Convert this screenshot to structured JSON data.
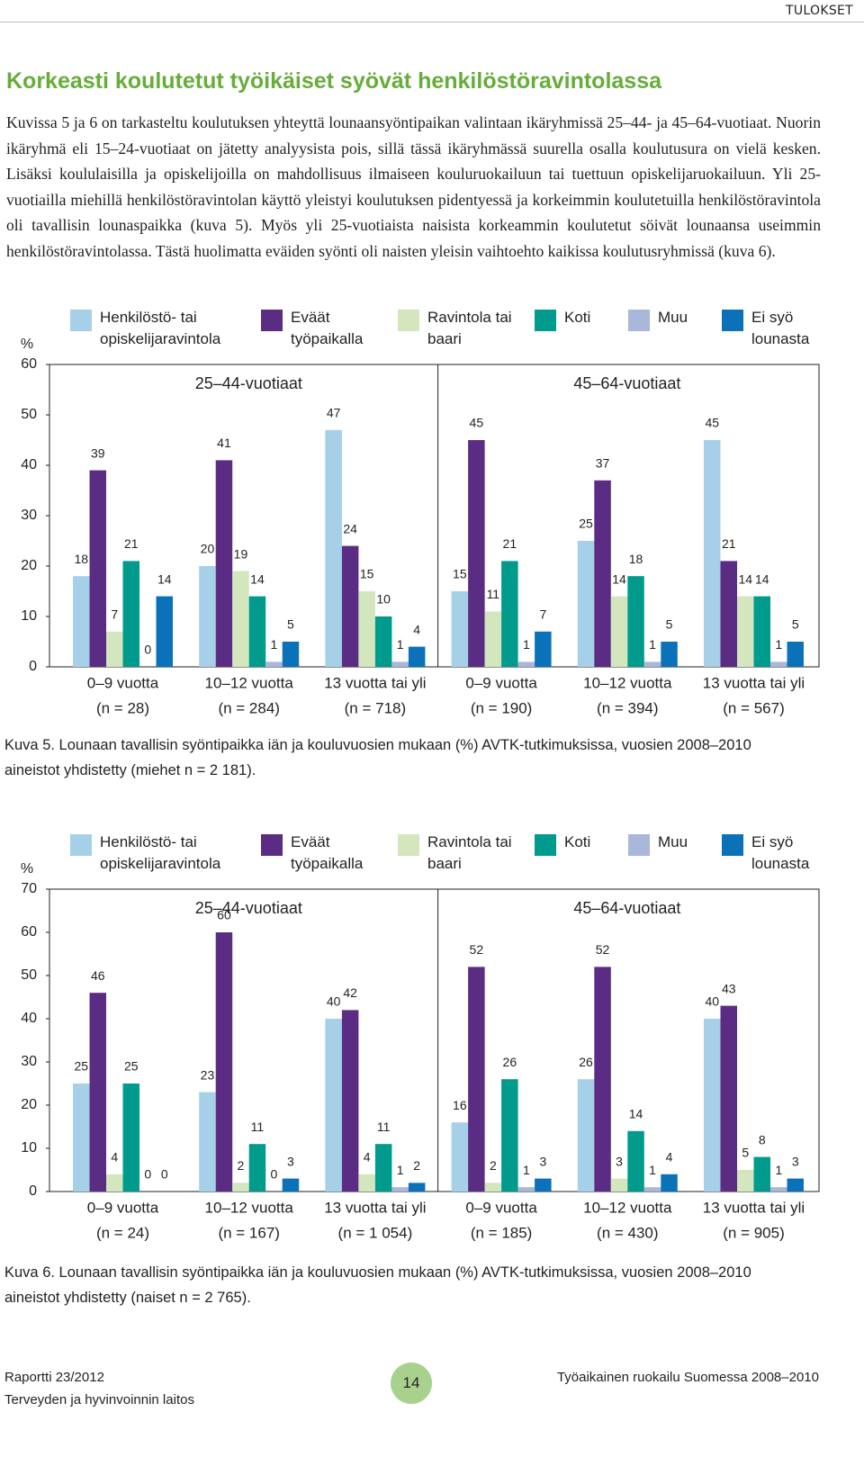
{
  "section": "TULOKSET",
  "heading": "Korkeasti koulutetut työikäiset syövät henkilöstöravintolassa",
  "paragraph": "Kuvissa 5 ja 6 on tarkasteltu koulutuksen yhteyttä lounaansyöntipaikan valintaan ikäryhmissä 25–44- ja 45–64-vuotiaat. Nuorin ikäryhmä eli 15–24-vuotiaat on jätetty analyysista pois, sillä tässä ikäryhmässä suurella osalla koulutusura on vielä kesken. Lisäksi koululaisilla ja opiskelijoilla on mahdollisuus ilmaiseen kouluruokailuun tai tuettuun opiskelijaruokailuun. Yli 25-vuotiailla miehillä henkilöstöravintolan käyttö yleistyi koulutuksen pidentyessä ja korkeimmin koulutetuilla henkilöstöravintola oli tavallisin lounaspaikka (kuva 5). Myös yli 25-vuotiaista naisista korkeammin koulutetut söivät lounaansa useimmin henkilöstöravintolassa. Tästä huolimatta eväiden syönti oli naisten yleisin vaihtoehto kaikissa koulutusryhmissä (kuva 6).",
  "chart_data": [
    {
      "type": "bar",
      "ylabel": "%",
      "ylim": [
        0,
        60
      ],
      "yticks": [
        0,
        10,
        20,
        30,
        40,
        50,
        60
      ],
      "groups": [
        "25–44-vuotiaat",
        "45–64-vuotiaat"
      ],
      "categories": [
        "0–9 vuotta",
        "10–12 vuotta",
        "13 vuotta tai yli",
        "0–9 vuotta",
        "10–12 vuotta",
        "13 vuotta tai yli"
      ],
      "category_notes": [
        "(n = 28)",
        "(n = 284)",
        "(n = 718)",
        "(n = 190)",
        "(n = 394)",
        "(n = 567)"
      ],
      "series": [
        {
          "name": "Henkilöstö- tai opiskelijaravintola",
          "color": "#a6cfe8",
          "values": [
            18,
            20,
            47,
            15,
            25,
            45
          ]
        },
        {
          "name": "Eväät työpaikalla",
          "color": "#5b2c83",
          "values": [
            39,
            41,
            24,
            45,
            37,
            21
          ]
        },
        {
          "name": "Ravintola tai baari",
          "color": "#d3e6bd",
          "values": [
            7,
            19,
            15,
            11,
            14,
            14
          ]
        },
        {
          "name": "Koti",
          "color": "#009b8d",
          "values": [
            21,
            14,
            10,
            21,
            18,
            14
          ]
        },
        {
          "name": "Muu",
          "color": "#a9b7da",
          "values": [
            0,
            1,
            1,
            1,
            1,
            1
          ]
        },
        {
          "name": "Ei syö lounasta",
          "color": "#0b72b9",
          "values": [
            14,
            5,
            4,
            7,
            5,
            5
          ]
        }
      ],
      "caption": "Kuva 5.  Lounaan tavallisin syöntipaikka iän ja kouluvuosien mukaan (%) AVTK-tutkimuksissa, vuosien 2008–2010 aineistot yhdistetty (miehet n = 2 181)."
    },
    {
      "type": "bar",
      "ylabel": "%",
      "ylim": [
        0,
        70
      ],
      "yticks": [
        0,
        10,
        20,
        30,
        40,
        50,
        60,
        70
      ],
      "groups": [
        "25–44-vuotiaat",
        "45–64-vuotiaat"
      ],
      "categories": [
        "0–9 vuotta",
        "10–12 vuotta",
        "13 vuotta tai yli",
        "0–9 vuotta",
        "10–12 vuotta",
        "13 vuotta tai yli"
      ],
      "category_notes": [
        "(n = 24)",
        "(n = 167)",
        "(n = 1 054)",
        "(n = 185)",
        "(n = 430)",
        "(n = 905)"
      ],
      "series": [
        {
          "name": "Henkilöstö- tai opiskelijaravintola",
          "color": "#a6cfe8",
          "values": [
            25,
            23,
            40,
            16,
            26,
            40
          ]
        },
        {
          "name": "Eväät työpaikalla",
          "color": "#5b2c83",
          "values": [
            46,
            60,
            42,
            52,
            52,
            43
          ]
        },
        {
          "name": "Ravintola tai baari",
          "color": "#d3e6bd",
          "values": [
            4,
            2,
            4,
            2,
            3,
            5
          ]
        },
        {
          "name": "Koti",
          "color": "#009b8d",
          "values": [
            25,
            11,
            11,
            26,
            14,
            8
          ]
        },
        {
          "name": "Muu",
          "color": "#a9b7da",
          "values": [
            0,
            0,
            1,
            1,
            1,
            1
          ]
        },
        {
          "name": "Ei syö lounasta",
          "color": "#0b72b9",
          "values": [
            0,
            3,
            2,
            3,
            4,
            3
          ]
        }
      ],
      "caption": "Kuva 6.  Lounaan tavallisin syöntipaikka iän ja kouluvuosien mukaan (%) AVTK-tutkimuksissa, vuosien 2008–2010 aineistot yhdistetty (naiset n = 2 765)."
    }
  ],
  "footer": {
    "report": "Raportti 23/2012",
    "publisher": "Terveyden ja hyvinvoinnin laitos",
    "page": "14",
    "publication": "Työaikainen ruokailu Suomessa 2008–2010"
  }
}
